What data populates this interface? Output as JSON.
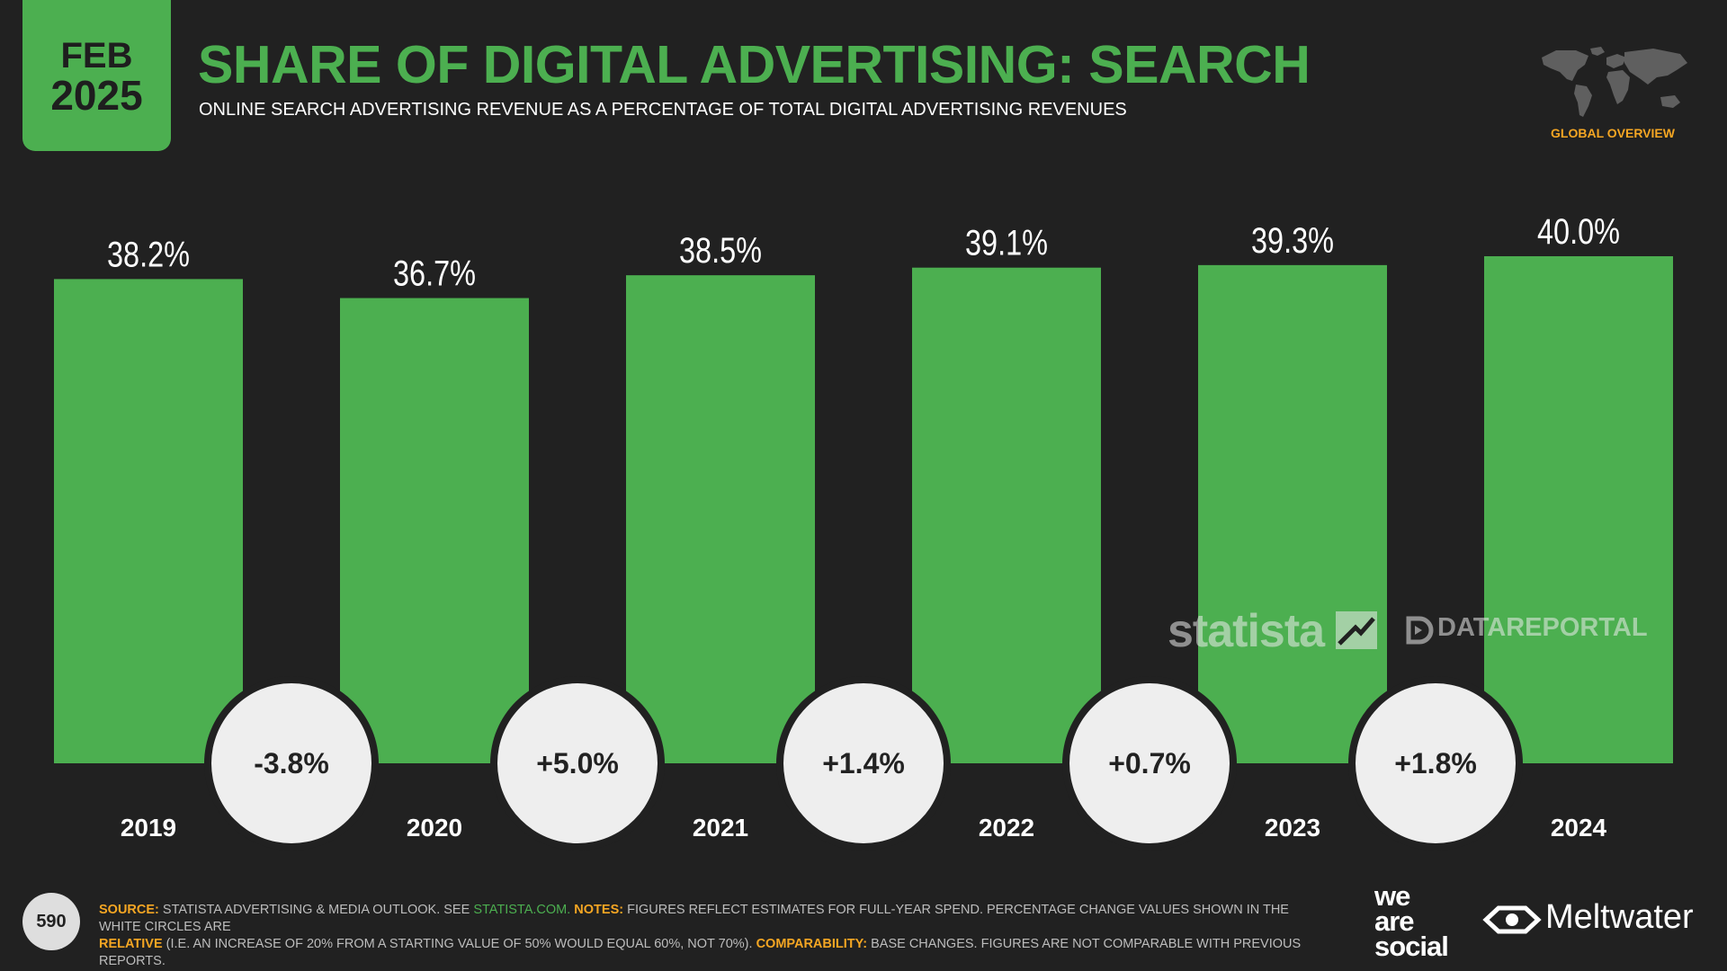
{
  "header": {
    "month": "FEB",
    "year": "2025",
    "title": "SHARE OF DIGITAL ADVERTISING: SEARCH",
    "subtitle": "ONLINE SEARCH ADVERTISING REVENUE AS A PERCENTAGE OF TOTAL DIGITAL ADVERTISING REVENUES",
    "region": "GLOBAL OVERVIEW"
  },
  "colors": {
    "accent": "#4caf50",
    "background": "#212121",
    "circle": "#eeeeee",
    "highlight": "#f5a623"
  },
  "chart_data": {
    "type": "bar",
    "title": "SHARE OF DIGITAL ADVERTISING: SEARCH",
    "categories": [
      "2019",
      "2020",
      "2021",
      "2022",
      "2023",
      "2024"
    ],
    "values": [
      38.2,
      36.7,
      38.5,
      39.1,
      39.3,
      40.0
    ],
    "value_labels": [
      "38.2%",
      "36.7%",
      "38.5%",
      "39.1%",
      "39.3%",
      "40.0%"
    ],
    "changes": [
      "-3.8%",
      "+5.0%",
      "+1.4%",
      "+0.7%",
      "+1.8%"
    ],
    "xlabel": "",
    "ylabel": "",
    "ylim": [
      0,
      40.0
    ],
    "grid": false,
    "legend": "none"
  },
  "watermarks": {
    "statista": "statista",
    "datareportal": "DATAREPORTAL"
  },
  "footer": {
    "page_number": "590",
    "source_label": "SOURCE:",
    "source_text": "STATISTA ADVERTISING & MEDIA OUTLOOK. SEE",
    "source_link": "STATISTA.COM.",
    "notes_label": "NOTES:",
    "notes_text": "FIGURES REFLECT ESTIMATES FOR FULL-YEAR SPEND. PERCENTAGE CHANGE VALUES SHOWN IN THE WHITE CIRCLES ARE",
    "relative_label": "RELATIVE",
    "relative_text": "(I.E. AN INCREASE OF 20% FROM A STARTING VALUE OF 50% WOULD EQUAL 60%, NOT 70%).",
    "comparability_label": "COMPARABILITY:",
    "comparability_text": "BASE CHANGES. FIGURES ARE NOT COMPARABLE WITH PREVIOUS REPORTS.",
    "brand_line1": "we",
    "brand_line2": "are",
    "brand_line3": "social",
    "brand_meltwater": "Meltwater"
  }
}
